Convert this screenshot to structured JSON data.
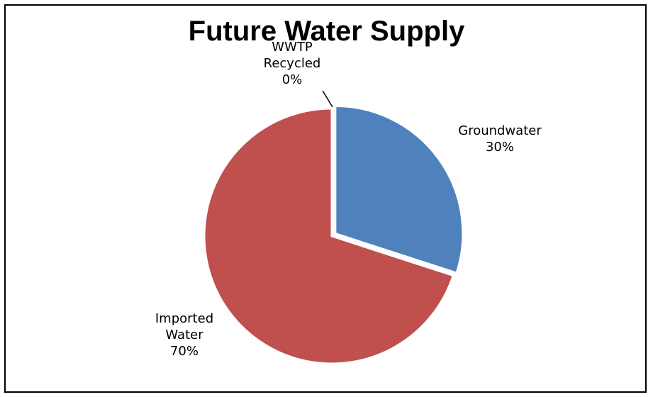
{
  "chart_data": {
    "type": "pie",
    "title": "Future Water Supply",
    "slices": [
      {
        "label_lines": [
          "Groundwater",
          "30%"
        ],
        "label": "Groundwater",
        "value": 30,
        "color": "#4F81BD"
      },
      {
        "label_lines": [
          "Imported",
          "Water",
          "70%"
        ],
        "label": "Imported Water",
        "value": 70,
        "color": "#C0504D"
      },
      {
        "label_lines": [
          "WWTP",
          "Recycled",
          "0%"
        ],
        "label": "WWTP Recycled",
        "value": 0,
        "color": "#9BBB59"
      }
    ]
  }
}
